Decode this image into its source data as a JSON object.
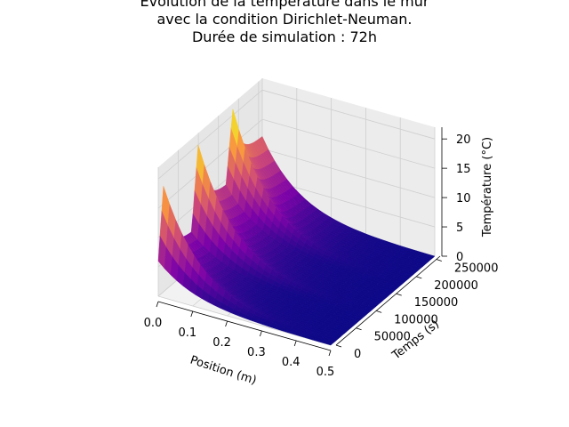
{
  "chart_data": {
    "type": "surface3d",
    "title_lines": [
      "Évolution de la température dans le mur",
      "avec la condition Dirichlet-Neuman.",
      "Durée de simulation : 72h"
    ],
    "xlabel": "Position (m)",
    "ylabel": "Temps (s)",
    "zlabel": "Température (°C)",
    "x_ticks": [
      0.0,
      0.1,
      0.2,
      0.3,
      0.4,
      0.5
    ],
    "x_tick_labels": [
      "0.0",
      "0.1",
      "0.2",
      "0.3",
      "0.4",
      "0.5"
    ],
    "y_ticks": [
      0,
      50000,
      100000,
      150000,
      200000,
      250000
    ],
    "y_tick_labels": [
      "0",
      "50000",
      "100000",
      "150000",
      "200000",
      "250000"
    ],
    "z_ticks": [
      0,
      5,
      10,
      15,
      20
    ],
    "z_tick_labels": [
      "0",
      "5",
      "10",
      "15",
      "20"
    ],
    "xlim": [
      0,
      0.5
    ],
    "ylim": [
      0,
      259200
    ],
    "zlim": [
      0,
      22
    ],
    "colormap": "plasma",
    "grid": true,
    "surface_description": "Wall temperature over position and time; periodic peaks (~20-22 °C) at x=0 decaying toward 0 °C at x=0.5 m.",
    "peak_temperatures_at_x0": [
      13,
      18,
      20,
      21
    ],
    "sample_grid": {
      "x": [
        0.0,
        0.1,
        0.2,
        0.3,
        0.4,
        0.5
      ],
      "t": [
        0,
        64800,
        129600,
        194400,
        259200
      ],
      "T": [
        [
          10.0,
          6.5,
          4.0,
          2.2,
          1.0,
          0.0
        ],
        [
          14.0,
          9.0,
          5.5,
          3.0,
          1.2,
          0.0
        ],
        [
          17.0,
          11.0,
          6.5,
          3.5,
          1.4,
          0.0
        ],
        [
          19.0,
          12.5,
          7.2,
          3.8,
          1.5,
          0.0
        ],
        [
          21.0,
          13.5,
          7.8,
          4.0,
          1.6,
          0.0
        ]
      ]
    }
  }
}
